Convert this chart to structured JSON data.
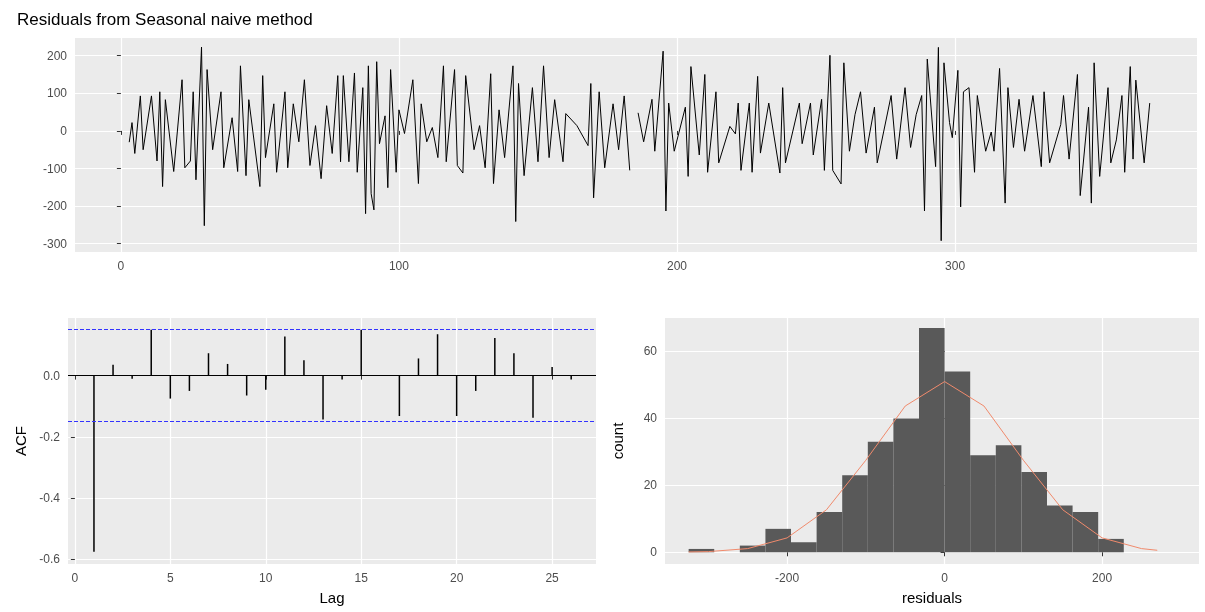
{
  "chart_data": [
    {
      "type": "line",
      "title": "Residuals from Seasonal naive method",
      "grid": true,
      "marker": "none",
      "xlim": [
        -16.5,
        387
      ],
      "xticks": [
        0,
        100,
        200,
        300
      ],
      "ylim": [
        -322,
        247
      ],
      "yticks": [
        -300,
        -200,
        -100,
        0,
        100,
        200
      ],
      "series": [
        {
          "color": "#000000",
          "x": [
            3,
            4,
            5,
            7,
            8,
            11,
            13,
            14,
            15,
            16,
            19,
            22,
            23,
            25,
            26,
            27,
            29,
            30,
            31,
            33,
            36,
            37,
            40,
            42,
            43,
            45,
            46,
            50,
            51,
            52,
            55,
            56,
            59,
            60,
            62,
            64,
            66,
            68,
            70,
            72,
            74,
            76,
            78,
            79,
            80,
            82,
            84,
            85,
            87,
            88,
            89,
            90,
            91,
            92,
            93,
            95,
            96,
            97,
            99,
            100,
            102,
            105,
            107,
            108,
            110,
            112,
            114,
            116,
            117,
            120,
            121,
            123,
            124,
            127,
            129,
            131,
            133,
            134,
            136,
            138,
            141,
            142,
            143,
            145,
            148,
            150,
            152,
            154,
            156,
            159,
            160,
            164,
            168,
            169,
            170,
            172,
            174,
            177,
            179,
            181,
            183,
            185,
            186,
            188,
            191,
            192,
            195,
            196,
            197,
            199,
            203,
            204,
            205,
            208,
            210,
            211,
            214,
            215,
            219,
            221,
            222,
            223,
            226,
            227,
            229,
            230,
            233,
            237,
            238,
            239,
            244,
            245,
            248,
            249,
            252,
            253,
            255,
            256,
            259,
            260,
            262,
            264,
            266,
            268,
            271,
            272,
            277,
            279,
            282,
            284,
            286,
            288,
            289,
            290,
            293,
            294,
            295,
            296,
            298,
            299,
            301,
            302,
            303,
            305,
            307,
            308,
            311,
            313,
            314,
            316,
            318,
            319,
            321,
            323,
            325,
            328,
            331,
            332,
            334,
            338,
            339,
            341,
            344,
            345,
            348,
            349,
            350,
            352,
            355,
            356,
            358,
            360,
            361,
            363,
            364,
            365,
            368,
            370
          ],
          "values": [
            -30,
            22,
            -60,
            93,
            -50,
            93,
            -80,
            104,
            -148,
            83,
            -108,
            136,
            -98,
            -80,
            104,
            -130,
            223,
            -252,
            163,
            -50,
            104,
            -98,
            35,
            -108,
            173,
            -119,
            83,
            -148,
            147,
            -71,
            72,
            -110,
            104,
            -98,
            72,
            -29,
            136,
            -92,
            14,
            -127,
            67,
            -60,
            147,
            -82,
            147,
            -82,
            154,
            -110,
            115,
            -220,
            173,
            -167,
            -210,
            184,
            -34,
            40,
            -151,
            163,
            -110,
            56,
            -7,
            136,
            -140,
            72,
            -29,
            9,
            -71,
            173,
            -82,
            163,
            -92,
            -112,
            147,
            -50,
            14,
            -98,
            152,
            -140,
            56,
            -71,
            173,
            -241,
            126,
            -119,
            115,
            -82,
            173,
            -71,
            83,
            -82,
            46,
            14,
            -39,
            126,
            -178,
            104,
            -98,
            72,
            -50,
            93,
            -105,
            null,
            48,
            -29,
            84,
            -54,
            212,
            -213,
            74,
            -54,
            63,
            -121,
            171,
            -64,
            150,
            -110,
            104,
            -85,
            12,
            -8,
            74,
            -105,
            74,
            -110,
            145,
            -59,
            74,
            -112,
            115,
            -85,
            74,
            -34,
            74,
            -64,
            84,
            -105,
            201,
            -105,
            -141,
            181,
            -54,
            43,
            104,
            -59,
            63,
            -85,
            94,
            -75,
            115,
            -44,
            43,
            94,
            -213,
            191,
            -95,
            222,
            -292,
            181,
            22,
            -18,
            161,
            -202,
            104,
            115,
            -110,
            94,
            -54,
            -3,
            -54,
            166,
            -192,
            115,
            -44,
            84,
            -54,
            94,
            -95,
            104,
            -85,
            17,
            94,
            -75,
            150,
            -172,
            63,
            -192,
            181,
            -121,
            115,
            -85,
            -24,
            94,
            -110,
            171,
            -75,
            135,
            -85,
            74
          ]
        }
      ]
    },
    {
      "type": "bar",
      "xlabel": "Lag",
      "ylabel": "ACF",
      "grid": true,
      "xlim": [
        -0.36,
        27.3
      ],
      "xticks": [
        0,
        5,
        10,
        15,
        20,
        25
      ],
      "ylim": [
        -0.615,
        0.188
      ],
      "yticks": [
        -0.6,
        -0.4,
        -0.2,
        {
          "value": 0,
          "label": "0.0"
        }
      ],
      "series": [
        {
          "color": "#000000",
          "x": [
            1,
            2,
            3,
            4,
            5,
            6,
            7,
            8,
            9,
            10,
            11,
            12,
            13,
            14,
            15,
            16,
            17,
            18,
            19,
            20,
            21,
            22,
            23,
            24,
            25,
            26
          ],
          "values": [
            -0.575,
            0.035,
            -0.01,
            0.15,
            -0.075,
            -0.05,
            0.073,
            0.038,
            -0.065,
            -0.046,
            0.128,
            0.05,
            -0.143,
            -0.013,
            0.15,
            null,
            -0.132,
            0.056,
            0.135,
            -0.132,
            -0.05,
            0.123,
            0.073,
            -0.138,
            0.028,
            -0.013
          ]
        }
      ],
      "ref_lines": [
        {
          "axis": "y",
          "value": 0,
          "color": "#000000",
          "line_style": "solid"
        },
        {
          "axis": "y",
          "value": 0.147,
          "color": "#3333ff",
          "line_style": "dashed"
        },
        {
          "axis": "y",
          "value": -0.147,
          "color": "#3333ff",
          "line_style": "dashed"
        }
      ]
    },
    {
      "type": "histogram",
      "xlabel": "residuals",
      "ylabel": "count",
      "grid": true,
      "marker": "none",
      "xlim": [
        -355,
        323
      ],
      "xticks": [
        -200,
        0,
        200
      ],
      "ylim": [
        -3.5,
        70
      ],
      "yticks": [
        0,
        20,
        40,
        60
      ],
      "bins": [
        -325,
        -292.5,
        -260,
        -227.5,
        -195,
        -162.5,
        -130,
        -97.5,
        -65,
        -32.5,
        0,
        32.5,
        65,
        97.5,
        130,
        162.5,
        195,
        227.5
      ],
      "series": [
        {
          "color": "#595959",
          "values": [
            1,
            0,
            2,
            7,
            3,
            12,
            23,
            33,
            40,
            67,
            54,
            29,
            32,
            24,
            14,
            12,
            4
          ]
        },
        {
          "type": "line",
          "color": "#f08a6c",
          "x": [
            -325,
            -300,
            -250,
            -200,
            -150,
            -100,
            -50,
            0,
            50,
            100,
            150,
            200,
            250,
            270
          ],
          "values": [
            0.1,
            0.2,
            1.1,
            4.3,
            12.7,
            27.5,
            43.7,
            51,
            43.7,
            27.5,
            12.7,
            4.3,
            1.1,
            0.6
          ]
        }
      ]
    }
  ]
}
